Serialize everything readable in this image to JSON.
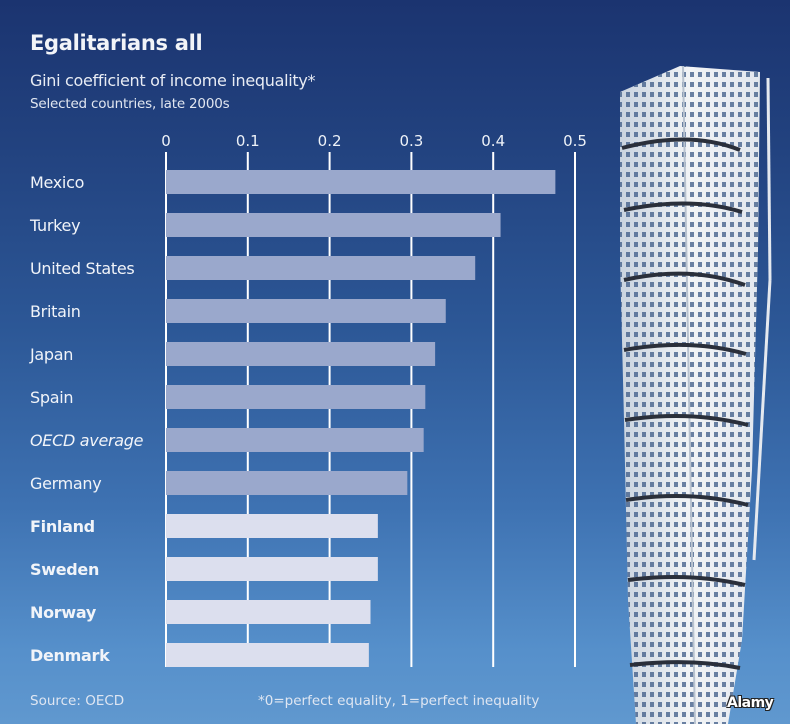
{
  "header": {
    "title": "Egalitarians all",
    "subtitle": "Gini coefficient of income inequality*",
    "subsubtitle": "Selected countries, late 2000s"
  },
  "footer": {
    "source": "Source: OECD",
    "footnote": "*0=perfect equality, 1=perfect inequality",
    "photo_credit": "Alamy"
  },
  "colors": {
    "bar_default": "#9aa8cc",
    "bar_nordic": "#dcdfee",
    "gridline": "#ffffff"
  },
  "chart_data": {
    "type": "bar",
    "orientation": "horizontal",
    "title": "Egalitarians all",
    "subtitle": "Gini coefficient of income inequality*",
    "xlabel": "",
    "ylabel": "",
    "xlim": [
      0,
      0.5
    ],
    "x_ticks": [
      "0",
      "0.1",
      "0.2",
      "0.3",
      "0.4",
      "0.5"
    ],
    "x_tick_values": [
      0,
      0.1,
      0.2,
      0.3,
      0.4,
      0.5
    ],
    "tick_position": "top",
    "grid": true,
    "categories": [
      "Mexico",
      "Turkey",
      "United States",
      "Britain",
      "Japan",
      "Spain",
      "OECD average",
      "Germany",
      "Finland",
      "Sweden",
      "Norway",
      "Denmark"
    ],
    "values": [
      0.476,
      0.409,
      0.378,
      0.342,
      0.329,
      0.317,
      0.315,
      0.295,
      0.259,
      0.259,
      0.25,
      0.248
    ],
    "highlight": [
      "default",
      "default",
      "default",
      "default",
      "default",
      "default",
      "default",
      "default",
      "nordic",
      "nordic",
      "nordic",
      "nordic"
    ],
    "label_style": [
      "normal",
      "normal",
      "normal",
      "normal",
      "normal",
      "normal",
      "italic",
      "normal",
      "bold",
      "bold",
      "bold",
      "bold"
    ]
  }
}
